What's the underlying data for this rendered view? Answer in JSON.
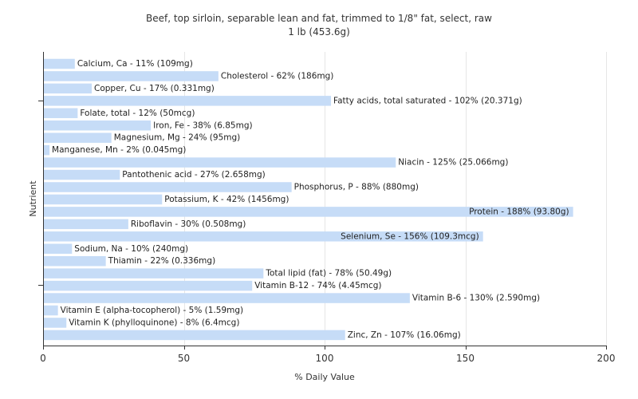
{
  "chart_data": {
    "type": "bar",
    "orientation": "horizontal",
    "title": "Beef, top sirloin, separable lean and fat, trimmed to 1/8\" fat, select, raw",
    "subtitle": "1 lb (453.6g)",
    "xlabel": "% Daily Value",
    "ylabel": "Nutrient",
    "xlim": [
      0,
      200
    ],
    "xticks": [
      "0",
      "50",
      "100",
      "150",
      "200"
    ],
    "grid": true,
    "bar_color": "#c6dcf7",
    "categories": [
      "Calcium, Ca",
      "Cholesterol",
      "Copper, Cu",
      "Fatty acids, total saturated",
      "Folate, total",
      "Iron, Fe",
      "Magnesium, Mg",
      "Manganese, Mn",
      "Niacin",
      "Pantothenic acid",
      "Phosphorus, P",
      "Potassium, K",
      "Protein",
      "Riboflavin",
      "Selenium, Se",
      "Sodium, Na",
      "Thiamin",
      "Total lipid (fat)",
      "Vitamin B-12",
      "Vitamin B-6",
      "Vitamin E (alpha-tocopherol)",
      "Vitamin K (phylloquinone)",
      "Zinc, Zn"
    ],
    "values": [
      11,
      62,
      17,
      102,
      12,
      38,
      24,
      2,
      125,
      27,
      88,
      42,
      188,
      30,
      156,
      10,
      22,
      78,
      74,
      130,
      5,
      8,
      107
    ],
    "labels": [
      "Calcium, Ca - 11% (109mg)",
      "Cholesterol - 62% (186mg)",
      "Copper, Cu - 17% (0.331mg)",
      "Fatty acids, total saturated - 102% (20.371g)",
      "Folate, total - 12% (50mcg)",
      "Iron, Fe - 38% (6.85mg)",
      "Magnesium, Mg - 24% (95mg)",
      "Manganese, Mn - 2% (0.045mg)",
      "Niacin - 125% (25.066mg)",
      "Pantothenic acid - 27% (2.658mg)",
      "Phosphorus, P - 88% (880mg)",
      "Potassium, K - 42% (1456mg)",
      "Protein - 188% (93.80g)",
      "Riboflavin - 30% (0.508mg)",
      "Selenium, Se - 156% (109.3mcg)",
      "Sodium, Na - 10% (240mg)",
      "Thiamin - 22% (0.336mg)",
      "Total lipid (fat) - 78% (50.49g)",
      "Vitamin B-12 - 74% (4.45mcg)",
      "Vitamin B-6 - 130% (2.590mg)",
      "Vitamin E (alpha-tocopherol) - 5% (1.59mg)",
      "Vitamin K (phylloquinone) - 8% (6.4mcg)",
      "Zinc, Zn - 107% (16.06mg)"
    ]
  }
}
